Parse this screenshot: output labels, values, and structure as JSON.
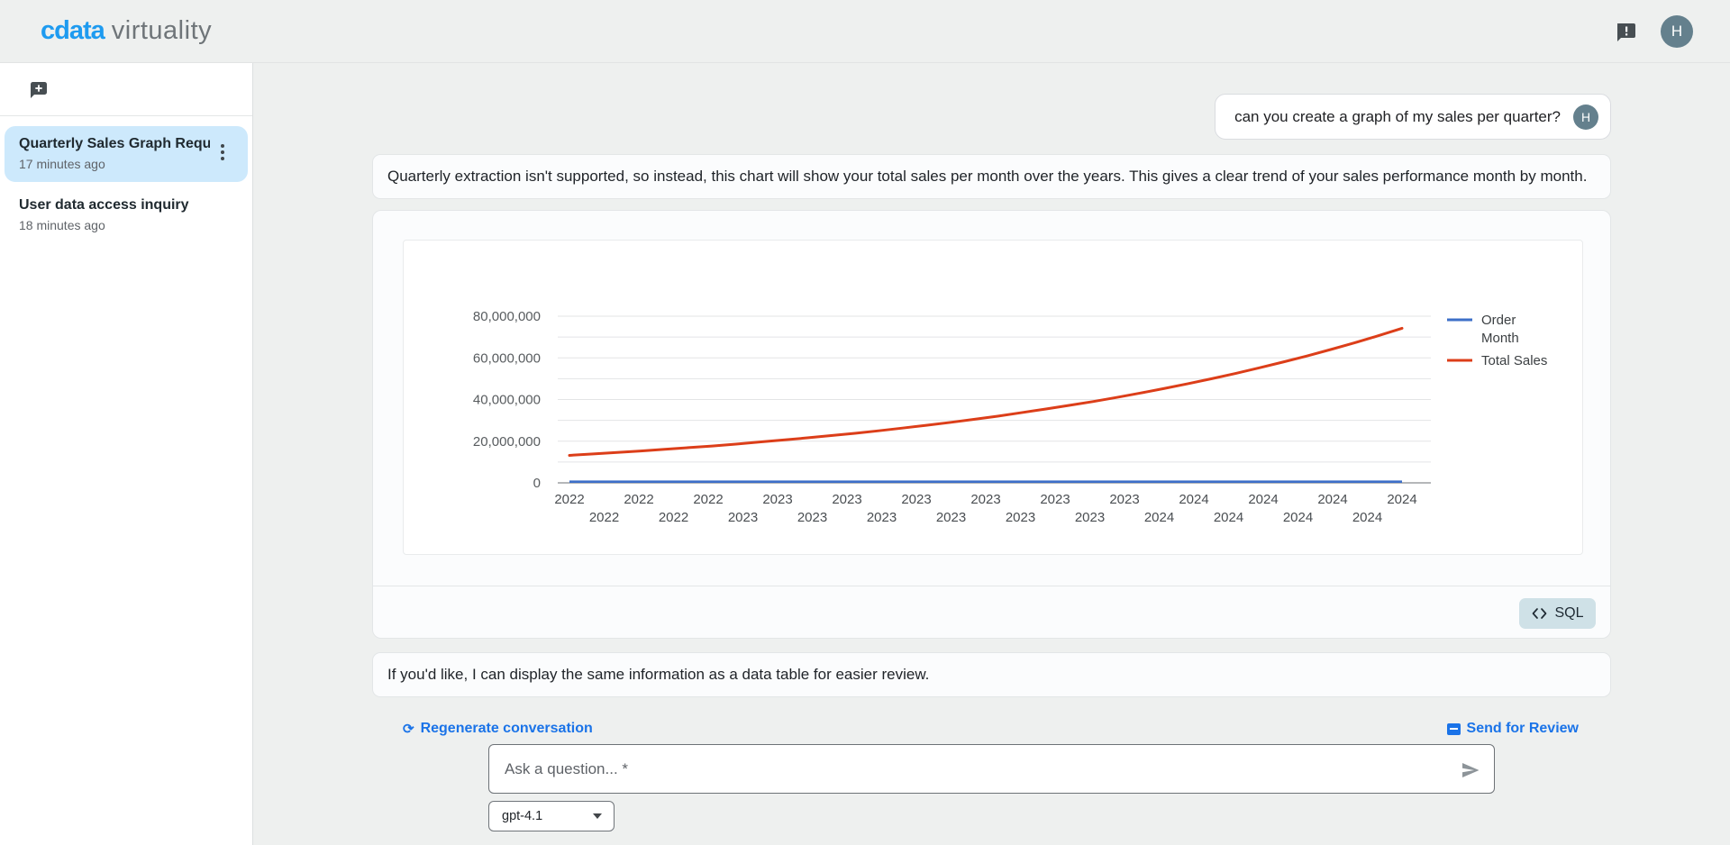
{
  "header": {
    "logo_primary": "cdata",
    "logo_secondary": "virtuality",
    "avatar_initial": "H"
  },
  "sidebar": {
    "conversations": [
      {
        "title": "Quarterly Sales Graph Requ...",
        "time": "17 minutes ago",
        "active": true
      },
      {
        "title": "User data access inquiry",
        "time": "18 minutes ago",
        "active": false
      }
    ]
  },
  "chat": {
    "user_message": {
      "text": "can you create a graph of my sales per quarter?",
      "avatar_initial": "H"
    },
    "assistant_message_1": "Quarterly extraction isn't supported, so instead, this chart will show your total sales per month over the years. This gives a clear trend of your sales performance month by month.",
    "assistant_message_2": "If you'd like, I can display the same information as a data table for easier review.",
    "sql_button_label": "SQL",
    "regenerate_label": "Regenerate conversation",
    "review_label": "Send for Review"
  },
  "composer": {
    "placeholder": "Ask a question... *",
    "model": "gpt-4.1"
  },
  "chart_data": {
    "type": "line",
    "title": "",
    "x_range": "Jan 2022 - Dec 2024, monthly points",
    "series": [
      {
        "name": "Order Month",
        "color": "#3d6fc8",
        "note": "renders as a flat line at the zero baseline (month values are negligible on the sales scale)",
        "values": [
          0,
          0,
          0,
          0,
          0,
          0,
          0,
          0,
          0,
          0,
          0,
          0,
          0,
          0,
          0,
          0,
          0,
          0,
          0,
          0,
          0,
          0,
          0,
          0,
          0,
          0,
          0,
          0,
          0,
          0,
          0,
          0,
          0,
          0,
          0,
          0
        ]
      },
      {
        "name": "Total Sales",
        "color": "#dc3e19",
        "values": [
          13200000,
          13900000,
          14600000,
          15300000,
          16100000,
          16900000,
          17700000,
          18600000,
          19600000,
          20600000,
          21600000,
          22700000,
          23800000,
          25000000,
          26300000,
          27600000,
          29000000,
          30500000,
          32000000,
          33700000,
          35400000,
          37200000,
          39000000,
          41000000,
          43100000,
          45300000,
          47600000,
          50000000,
          52500000,
          55200000,
          58000000,
          60900000,
          64000000,
          67200000,
          70600000,
          74200000
        ]
      }
    ],
    "y_axis": {
      "max": 80000000,
      "min": 0,
      "gridline_step": 10000000,
      "ticks": [
        0,
        20000000,
        40000000,
        60000000,
        80000000
      ],
      "tick_labels": [
        "0",
        "20,000,000",
        "40,000,000",
        "60,000,000",
        "80,000,000"
      ]
    },
    "x_axis": {
      "staggered": true,
      "top_row_labels": [
        "2022",
        "2022",
        "2022",
        "2023",
        "2023",
        "2023",
        "2023",
        "2023",
        "2023",
        "2024",
        "2024",
        "2024",
        "2024"
      ],
      "bottom_row_labels": [
        "2022",
        "2022",
        "2023",
        "2023",
        "2023",
        "2023",
        "2023",
        "2023",
        "2024",
        "2024",
        "2024",
        "2024"
      ]
    },
    "legend": {
      "position": "right",
      "entries": [
        {
          "label": "Order Month",
          "lines": [
            "Order",
            "Month"
          ],
          "color": "#3d6fc8"
        },
        {
          "label": "Total Sales",
          "lines": [
            "Total Sales"
          ],
          "color": "#dc3e19"
        }
      ]
    },
    "grid": true
  }
}
